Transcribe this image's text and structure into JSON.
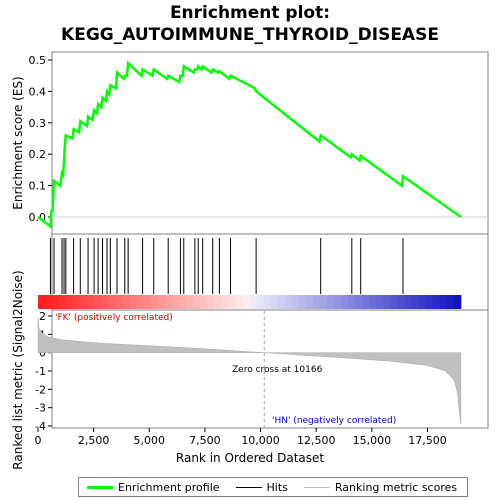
{
  "title_line1": "Enrichment plot:",
  "title_line2": "KEGG_AUTOIMMUNE_THYROID_DISEASE",
  "legend": {
    "enrichment": "Enrichment profile",
    "hits": "Hits",
    "ranking": "Ranking metric scores"
  },
  "colors": {
    "enrichment_line": "#00ff00",
    "hit_line": "#000000",
    "ranking_fill": "#c0c0c0",
    "positive_label": "#cc0000",
    "negative_label": "#0000cc"
  },
  "chart_data": [
    {
      "type": "line",
      "name": "enrichment",
      "ylabel": "Enrichment score (ES)",
      "ylim": [
        -0.03,
        0.52
      ],
      "yticks": [
        "0.0",
        "0.1",
        "0.2",
        "0.3",
        "0.4",
        "0.5"
      ],
      "xlim": [
        0,
        19500
      ],
      "x": [
        0,
        560,
        600,
        650,
        720,
        1000,
        1080,
        1130,
        1170,
        1200,
        1250,
        1550,
        1600,
        1850,
        1900,
        2200,
        2250,
        2450,
        2520,
        2650,
        2700,
        2850,
        2900,
        3050,
        3100,
        3200,
        3250,
        3500,
        3550,
        3850,
        3900,
        4000,
        4050,
        4650,
        4700,
        5150,
        5200,
        5800,
        5850,
        6350,
        6400,
        6500,
        6550,
        7000,
        7050,
        7150,
        7200,
        7350,
        7400,
        7800,
        7850,
        8100,
        8150,
        8600,
        8650,
        9750,
        9800,
        12650,
        12700,
        14050,
        14100,
        14450,
        14500,
        16350,
        16400,
        19000
      ],
      "y": [
        0.0,
        -0.03,
        0.02,
        0.02,
        0.115,
        0.1,
        0.14,
        0.135,
        0.18,
        0.22,
        0.26,
        0.25,
        0.28,
        0.27,
        0.305,
        0.29,
        0.32,
        0.31,
        0.34,
        0.33,
        0.36,
        0.35,
        0.38,
        0.37,
        0.4,
        0.39,
        0.42,
        0.41,
        0.46,
        0.44,
        0.45,
        0.45,
        0.49,
        0.45,
        0.47,
        0.45,
        0.47,
        0.44,
        0.45,
        0.43,
        0.45,
        0.45,
        0.48,
        0.46,
        0.47,
        0.47,
        0.48,
        0.47,
        0.48,
        0.46,
        0.47,
        0.46,
        0.465,
        0.44,
        0.45,
        0.41,
        0.4,
        0.24,
        0.26,
        0.19,
        0.2,
        0.18,
        0.195,
        0.1,
        0.13,
        0.0
      ]
    },
    {
      "type": "bar",
      "name": "hits",
      "x": [
        560,
        720,
        1080,
        1170,
        1250,
        1600,
        1900,
        2250,
        2520,
        2700,
        2900,
        3100,
        3250,
        3550,
        3900,
        4050,
        4700,
        5200,
        5850,
        6400,
        6550,
        7050,
        7200,
        7400,
        7850,
        8150,
        8650,
        9800,
        12700,
        14100,
        14500,
        16400
      ]
    },
    {
      "type": "area",
      "name": "ranking",
      "ylabel": "Ranked list metric (Signal2Noise)",
      "xlabel": "Rank in Ordered Dataset",
      "ylim": [
        -4,
        2.3
      ],
      "yticks": [
        "2",
        "1",
        "0",
        "-1",
        "-2",
        "-3",
        "-4"
      ],
      "xticks": [
        "0",
        "2,500",
        "5,000",
        "7,500",
        "10,000",
        "12,500",
        "15,000",
        "17,500"
      ],
      "x": [
        0,
        50,
        200,
        500,
        1000,
        2000,
        3000,
        5000,
        7000,
        8500,
        10166,
        12000,
        14000,
        16000,
        17500,
        18300,
        18700,
        18850,
        18950,
        19000
      ],
      "y": [
        1.9,
        1.3,
        1.05,
        0.85,
        0.72,
        0.6,
        0.5,
        0.38,
        0.25,
        0.13,
        0.0,
        -0.15,
        -0.3,
        -0.48,
        -0.7,
        -1.0,
        -1.5,
        -2.2,
        -3.5,
        -3.9
      ]
    }
  ],
  "annotations": {
    "positive": "'FK' (positively correlated)",
    "negative": "'HN' (negatively correlated)",
    "zero_cross": "Zero cross at 10166"
  }
}
